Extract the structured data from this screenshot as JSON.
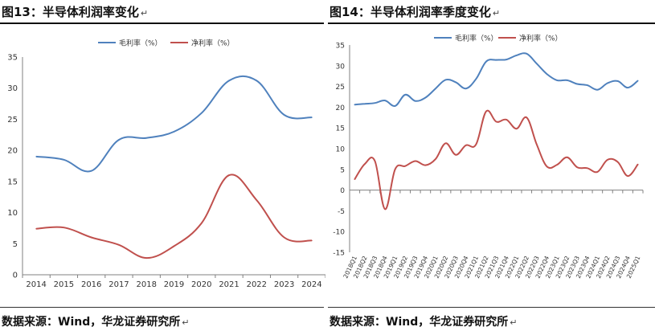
{
  "fig13": {
    "title": "图13：半导体利润率变化",
    "return_mark": "↵"
  },
  "fig14": {
    "title": "图14：半导体利润率季度变化",
    "return_mark": "↵"
  },
  "source_left": "数据来源：Wind，华龙证券研究所",
  "source_right": "数据来源：Wind，华龙证券研究所",
  "colors": {
    "gross": "#4f81bd",
    "net": "#c0504d",
    "axis": "#808080"
  },
  "chart_data": [
    {
      "type": "line",
      "categories": [
        "2014",
        "2015",
        "2016",
        "2017",
        "2018",
        "2019",
        "2020",
        "2021",
        "2022",
        "2023",
        "2024"
      ],
      "series": [
        {
          "name": "毛利率（%）",
          "values": [
            19.0,
            18.5,
            16.7,
            21.7,
            22.0,
            23.0,
            26.0,
            31.2,
            31.2,
            25.7,
            25.3
          ]
        },
        {
          "name": "净利率（%）",
          "values": [
            7.4,
            7.6,
            6.0,
            4.8,
            2.7,
            4.6,
            8.3,
            16.0,
            12.0,
            6.0,
            5.5
          ]
        }
      ],
      "ylim": [
        0,
        35
      ],
      "yticks": [
        0,
        5,
        10,
        15,
        20,
        25,
        30,
        35
      ],
      "legend": "top"
    },
    {
      "type": "line",
      "categories": [
        "2018Q1",
        "2018Q2",
        "2018Q3",
        "2018Q4",
        "2019Q1",
        "2019Q2",
        "2019Q3",
        "2019Q4",
        "2020Q1",
        "2020Q2",
        "2020Q3",
        "2020Q4",
        "2021Q1",
        "2021Q2",
        "2021Q3",
        "2021Q4",
        "2022Q1",
        "2022Q2",
        "2022Q3",
        "2022Q4",
        "2023Q1",
        "2023Q2",
        "2023Q3",
        "2023Q4",
        "2024Q1",
        "2024Q2",
        "2024Q3",
        "2024Q4",
        "2025Q1"
      ],
      "series": [
        {
          "name": "毛利率（%）",
          "values": [
            20.6,
            20.8,
            21.0,
            21.6,
            20.3,
            23.0,
            21.5,
            22.3,
            24.5,
            26.6,
            26.0,
            24.5,
            26.8,
            31.0,
            31.4,
            31.5,
            32.5,
            32.9,
            30.5,
            28.0,
            26.5,
            26.5,
            25.6,
            25.3,
            24.2,
            25.8,
            26.3,
            24.7,
            26.4
          ]
        },
        {
          "name": "净利率（%）",
          "values": [
            2.6,
            6.3,
            7.0,
            -4.6,
            5.0,
            5.8,
            7.0,
            6.0,
            7.5,
            11.3,
            8.5,
            10.8,
            11.0,
            19.0,
            16.5,
            17.0,
            14.8,
            17.5,
            11.0,
            5.7,
            6.1,
            7.9,
            5.5,
            5.3,
            4.4,
            7.3,
            6.8,
            3.4,
            6.2
          ]
        }
      ],
      "ylim": [
        -15,
        35
      ],
      "yticks": [
        -15,
        -10,
        -5,
        0,
        5,
        10,
        15,
        20,
        25,
        30,
        35
      ],
      "legend": "top"
    }
  ]
}
